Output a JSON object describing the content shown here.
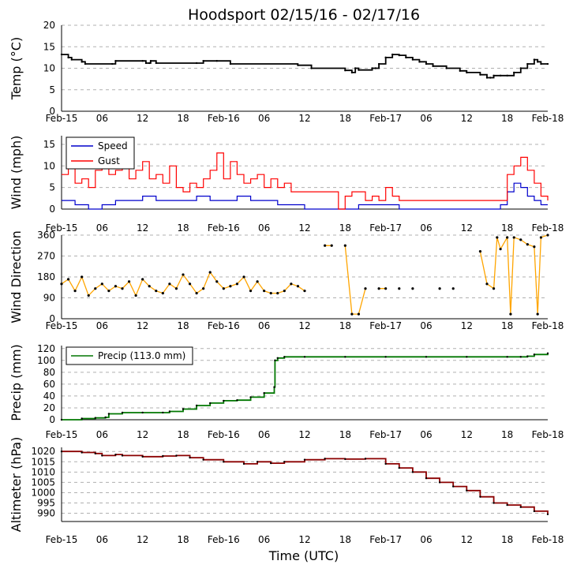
{
  "title": "Hoodsport 02/15/16 - 02/17/16",
  "xlabel": "Time (UTC)",
  "x_ticks": [
    "Feb-15",
    "06",
    "12",
    "18",
    "Feb-16",
    "06",
    "12",
    "18",
    "Feb-17",
    "06",
    "12",
    "18",
    "Feb-18"
  ],
  "x_range_hours": [
    0,
    72
  ],
  "colors": {
    "temp": "#000000",
    "speed": "#0000cc",
    "gust": "#ff0000",
    "direction": "#ffa500",
    "precip": "#007700",
    "altimeter": "#8b0000",
    "grid": "#b0b0b0"
  },
  "chart_data": [
    {
      "type": "line",
      "ylabel": "Temp ($^\\circ$C)",
      "ylabel_display": "Temp (°C)",
      "ylim": [
        0,
        20
      ],
      "yticks": [
        "0",
        "5",
        "10",
        "15",
        "20"
      ],
      "series": [
        {
          "key": "temp",
          "x": [
            0,
            1,
            1.5,
            3,
            3.5,
            7.5,
            8,
            12,
            12.5,
            13,
            13.2,
            14,
            20,
            21,
            23,
            25,
            35,
            37,
            42,
            43,
            43.5,
            44,
            46,
            46.5,
            47,
            48,
            49,
            50,
            51,
            52,
            53,
            54,
            55,
            57,
            59,
            60,
            62,
            63,
            63.5,
            64,
            65,
            66,
            67,
            68,
            69,
            70,
            70.5,
            71,
            72
          ],
          "y": [
            13.2,
            12.5,
            12,
            11.5,
            11,
            11,
            11.7,
            11.7,
            11.2,
            11.2,
            11.7,
            11.2,
            11.2,
            11.7,
            11.7,
            11,
            10.7,
            10,
            9.5,
            9,
            10,
            9.6,
            10,
            10,
            11,
            12.5,
            13.2,
            13,
            12.5,
            12,
            11.5,
            11,
            10.5,
            10,
            9.4,
            9,
            8.5,
            7.8,
            7.8,
            8.3,
            8.3,
            8.3,
            9,
            10,
            11,
            12,
            11.5,
            11,
            11
          ]
        }
      ]
    },
    {
      "type": "line",
      "ylabel": "Wind (mph)",
      "ylim": [
        0,
        17
      ],
      "yticks": [
        "0",
        "5",
        "10",
        "15"
      ],
      "legend": [
        "Speed",
        "Gust"
      ],
      "series": [
        {
          "key": "speed",
          "name": "Speed",
          "x": [
            0,
            2,
            4,
            6,
            8,
            10,
            12,
            14,
            16,
            18,
            20,
            22,
            24,
            26,
            28,
            30,
            32,
            34,
            36,
            38,
            40,
            42,
            44,
            46,
            48,
            50,
            52,
            54,
            56,
            58,
            60,
            62,
            64,
            65,
            66,
            67,
            68,
            69,
            70,
            71,
            72
          ],
          "y": [
            2,
            1,
            0,
            1,
            2,
            2,
            3,
            2,
            2,
            2,
            3,
            2,
            2,
            3,
            2,
            2,
            1,
            1,
            0,
            0,
            0,
            0,
            1,
            1,
            1,
            0,
            0,
            0,
            0,
            0,
            0,
            0,
            0,
            1,
            4,
            6,
            5,
            3,
            2,
            1,
            1
          ]
        },
        {
          "key": "gust",
          "name": "Gust",
          "x": [
            0,
            1,
            2,
            3,
            4,
            5,
            6,
            7,
            8,
            9,
            10,
            11,
            12,
            13,
            14,
            15,
            16,
            17,
            18,
            19,
            20,
            21,
            22,
            23,
            24,
            25,
            26,
            27,
            28,
            29,
            30,
            31,
            32,
            33,
            34,
            41,
            42,
            43,
            44,
            45,
            46,
            47,
            48,
            49,
            50,
            51,
            52,
            53,
            54,
            55,
            56,
            57,
            58,
            59,
            60,
            61,
            62,
            63,
            64,
            65,
            66,
            67,
            68,
            69,
            70,
            71,
            72
          ],
          "y": [
            8,
            10,
            6,
            7,
            5,
            9,
            11,
            8,
            9,
            10,
            7,
            9,
            11,
            7,
            8,
            6,
            10,
            5,
            4,
            6,
            5,
            7,
            9,
            13,
            7,
            11,
            8,
            6,
            7,
            8,
            5,
            7,
            5,
            6,
            4,
            0,
            3,
            4,
            4,
            2,
            3,
            2,
            5,
            3,
            2,
            2,
            2,
            2,
            2,
            2,
            2,
            2,
            2,
            2,
            2,
            2,
            2,
            2,
            2,
            2,
            8,
            10,
            12,
            9,
            6,
            3,
            2
          ]
        }
      ]
    },
    {
      "type": "scatter",
      "ylabel": "Wind Direction",
      "ylim": [
        0,
        360
      ],
      "yticks": [
        "0",
        "90",
        "180",
        "270",
        "360"
      ],
      "series": [
        {
          "key": "direction",
          "x": [
            0,
            1,
            2,
            3,
            4,
            5,
            6,
            7,
            8,
            9,
            10,
            11,
            12,
            13,
            14,
            15,
            16,
            17,
            18,
            19,
            20,
            21,
            22,
            23,
            24,
            25,
            26,
            27,
            28,
            29,
            30,
            31,
            32,
            33,
            34,
            35,
            36,
            39,
            40,
            42,
            43,
            44,
            45,
            47,
            48,
            50,
            52,
            56,
            58,
            62,
            63,
            64,
            64.5,
            65,
            66,
            66.5,
            67,
            68,
            69,
            70,
            70.5,
            71,
            72
          ],
          "y": [
            150,
            170,
            120,
            180,
            100,
            130,
            150,
            120,
            140,
            130,
            160,
            100,
            170,
            140,
            120,
            110,
            150,
            130,
            190,
            150,
            110,
            130,
            200,
            160,
            130,
            140,
            150,
            180,
            120,
            160,
            120,
            110,
            110,
            120,
            150,
            140,
            120,
            315,
            315,
            315,
            20,
            20,
            130,
            130,
            130,
            130,
            130,
            130,
            130,
            290,
            150,
            130,
            350,
            300,
            350,
            20,
            350,
            340,
            320,
            310,
            20,
            350,
            360
          ]
        }
      ]
    },
    {
      "type": "line",
      "ylabel": "Precip (mm)",
      "ylim": [
        0,
        125
      ],
      "yticks": [
        "0",
        "20",
        "40",
        "60",
        "80",
        "100",
        "120"
      ],
      "legend": [
        "Precip (113.0 mm)"
      ],
      "series": [
        {
          "key": "precip",
          "name": "Precip (113.0 mm)",
          "x": [
            0,
            3,
            5,
            6.5,
            7,
            9,
            12,
            15,
            16,
            18,
            20,
            22,
            24,
            26,
            28,
            30,
            31.5,
            31.6,
            32,
            33,
            36,
            42,
            48,
            54,
            60,
            66,
            68,
            69,
            70,
            72
          ],
          "y": [
            0,
            2,
            3,
            4,
            10,
            12,
            12,
            12,
            14,
            18,
            24,
            28,
            32,
            33,
            38,
            45,
            55,
            100,
            104,
            106,
            106,
            106,
            106,
            106,
            106,
            106,
            106,
            107,
            110,
            112
          ]
        }
      ]
    },
    {
      "type": "line",
      "ylabel": "Altimeter (hPa)",
      "ylim": [
        986,
        1022
      ],
      "yticks": [
        "990",
        "995",
        "1000",
        "1005",
        "1010",
        "1015",
        "1020"
      ],
      "series": [
        {
          "key": "altimeter",
          "x": [
            0,
            3,
            5,
            6,
            8,
            9,
            12,
            15,
            17,
            19,
            21,
            24,
            27,
            29,
            31,
            33,
            36,
            39,
            42,
            45,
            48,
            50,
            52,
            54,
            56,
            58,
            60,
            62,
            64,
            66,
            68,
            70,
            72
          ],
          "y": [
            1020,
            1019.5,
            1019,
            1018,
            1018.5,
            1018,
            1017.5,
            1017.8,
            1018,
            1017,
            1016,
            1015,
            1014,
            1015,
            1014.3,
            1015,
            1016,
            1016.5,
            1016.3,
            1016.5,
            1014,
            1012,
            1010,
            1007,
            1005,
            1003,
            1001,
            998,
            995,
            994,
            993,
            991,
            989.5
          ]
        }
      ]
    }
  ]
}
